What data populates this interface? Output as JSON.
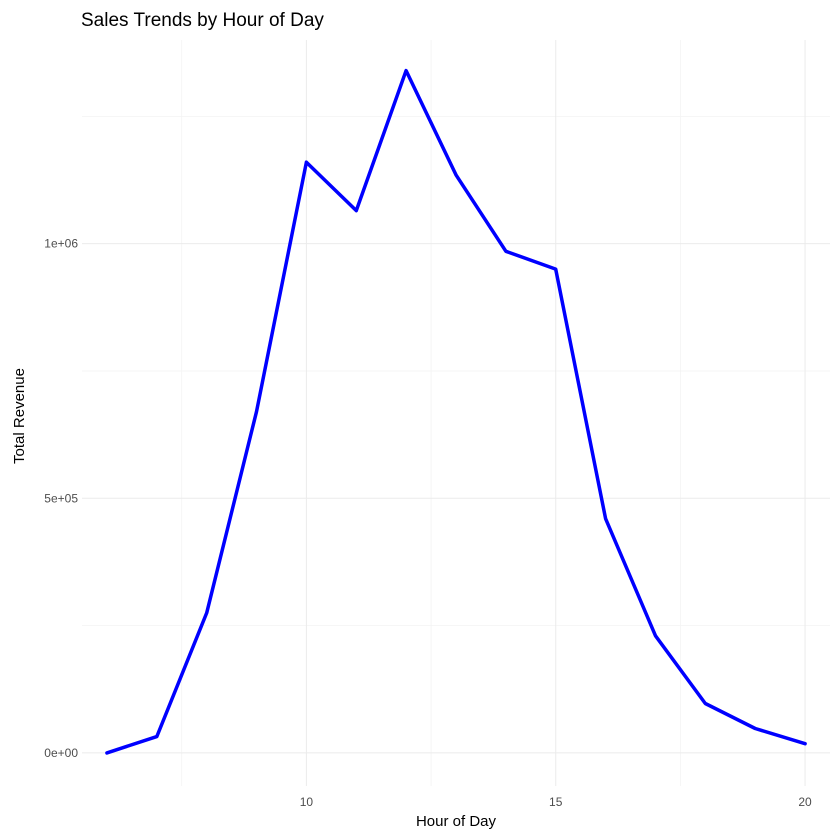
{
  "chart_data": {
    "type": "line",
    "title": "Sales Trends by Hour of Day",
    "xlabel": "Hour of Day",
    "ylabel": "Total Revenue",
    "xlim": [
      5.5,
      20.5
    ],
    "ylim": [
      -65000,
      1400000
    ],
    "x_ticks": [
      10,
      15,
      20
    ],
    "x_tick_labels": [
      "10",
      "15",
      "20"
    ],
    "x_minor_ticks": [
      7.5,
      12.5,
      17.5
    ],
    "y_ticks": [
      0,
      500000,
      1000000
    ],
    "y_tick_labels": [
      "0e+00",
      "5e+05",
      "1e+06"
    ],
    "y_minor_ticks": [
      250000,
      750000,
      1250000
    ],
    "grid": true,
    "legend": "none",
    "series": [
      {
        "color": "#0000ff",
        "x": [
          6,
          7,
          8,
          9,
          10,
          11,
          12,
          13,
          14,
          15,
          16,
          17,
          18,
          19,
          20
        ],
        "values": [
          0,
          32000,
          275000,
          670000,
          1160000,
          1065000,
          1340000,
          1135000,
          985000,
          950000,
          460000,
          230000,
          97000,
          48000,
          18000
        ]
      }
    ]
  }
}
